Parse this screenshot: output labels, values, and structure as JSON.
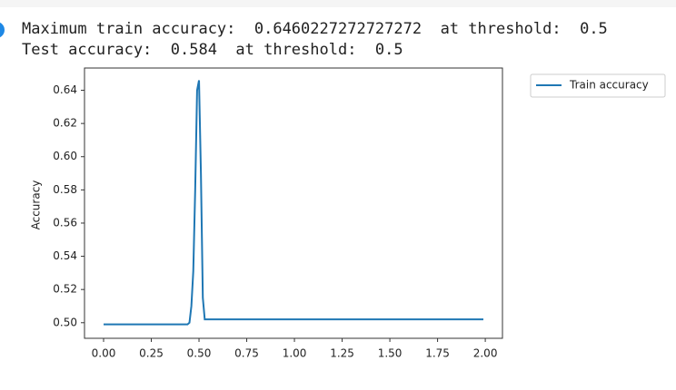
{
  "output_lines": [
    "Maximum train accuracy:  0.6460227272727272  at threshold:  0.5",
    "Test accuracy:  0.584  at threshold:  0.5"
  ],
  "chart_data": {
    "type": "line",
    "ylabel": "Accuracy",
    "x": [
      0,
      0.44,
      0.45,
      0.46,
      0.47,
      0.48,
      0.49,
      0.5,
      0.51,
      0.52,
      0.53,
      1.99
    ],
    "series": [
      {
        "name": "Train accuracy",
        "color": "#1f77b4",
        "values": [
          0.499,
          0.499,
          0.5,
          0.51,
          0.531,
          0.58,
          0.64,
          0.646,
          0.59,
          0.515,
          0.502,
          0.502
        ]
      }
    ],
    "xlim": [
      -0.1,
      2.09
    ],
    "ylim": [
      0.4906,
      0.6534
    ],
    "xticks": [
      {
        "value": 0,
        "label": "0.00"
      },
      0.25,
      {
        "value": 0.5,
        "label": "0.50"
      },
      0.75,
      {
        "value": 1,
        "label": "1.00"
      },
      1.25,
      {
        "value": 1.5,
        "label": "1.50"
      },
      1.75,
      {
        "value": 2,
        "label": "2.00"
      }
    ],
    "yticks": [
      {
        "value": 0.5,
        "label": "0.50"
      },
      0.52,
      0.54,
      0.56,
      0.58,
      {
        "value": 0.6,
        "label": "0.60"
      },
      0.62,
      0.64
    ],
    "legend": "outside-upper-right"
  }
}
